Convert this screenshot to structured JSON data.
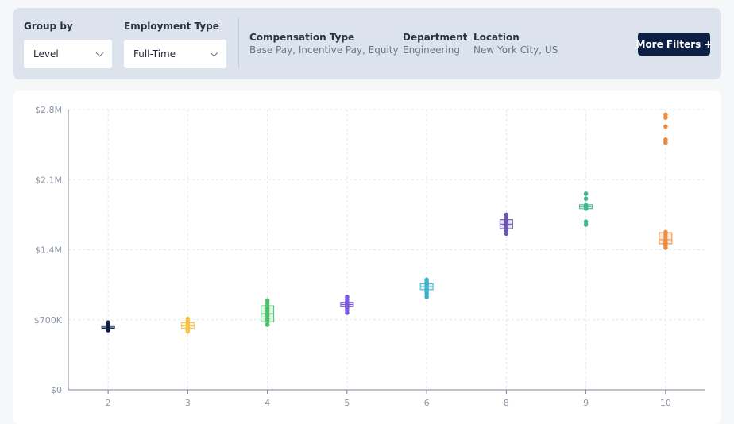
{
  "filters": {
    "group_by": {
      "label": "Group by",
      "value": "Level"
    },
    "employment_type": {
      "label": "Employment Type",
      "value": "Full-Time"
    },
    "compensation_type": {
      "label": "Compensation Type",
      "value": "Base Pay, Incentive Pay, Equity"
    },
    "department": {
      "label": "Department",
      "value": "Engineering"
    },
    "location": {
      "label": "Location",
      "value": "New York City, US"
    },
    "more_filters_label": "More Filters +"
  },
  "chart_data": {
    "type": "scatter",
    "title": "",
    "xlabel": "",
    "ylabel": "",
    "ylim": [
      0,
      2800000
    ],
    "y_ticks": [
      {
        "value": 0,
        "label": "$0"
      },
      {
        "value": 700000,
        "label": "$700K"
      },
      {
        "value": 1400000,
        "label": "$1.4M"
      },
      {
        "value": 2100000,
        "label": "$2.1M"
      },
      {
        "value": 2800000,
        "label": "$2.8M"
      }
    ],
    "categories": [
      "2",
      "3",
      "4",
      "5",
      "6",
      "8",
      "9",
      "10"
    ],
    "grid": true,
    "groups": [
      {
        "level": "2",
        "color": "#0d1f45",
        "box": [
          615000,
          640000
        ],
        "median": 628000,
        "points": [
          595000,
          605000,
          612000,
          620000,
          626000,
          632000,
          640000,
          648000,
          656000,
          665000,
          672000
        ]
      },
      {
        "level": "3",
        "color": "#f7c548",
        "box": [
          615000,
          670000
        ],
        "median": 645000,
        "points": [
          582000,
          595000,
          610000,
          625000,
          640000,
          652000,
          665000,
          680000,
          695000,
          710000
        ]
      },
      {
        "level": "4",
        "color": "#4cc06a",
        "box": [
          680000,
          840000
        ],
        "median": 760000,
        "points": [
          650000,
          680000,
          710000,
          740000,
          760000,
          790000,
          815000,
          840000,
          870000,
          895000
        ]
      },
      {
        "level": "5",
        "color": "#7a58e0",
        "box": [
          830000,
          875000
        ],
        "median": 853000,
        "points": [
          770000,
          795000,
          820000,
          845000,
          862000,
          880000,
          905000,
          930000
        ]
      },
      {
        "level": "6",
        "color": "#3cb2c9",
        "box": [
          1000000,
          1060000
        ],
        "median": 1030000,
        "points": [
          930000,
          960000,
          985000,
          1010000,
          1030000,
          1050000,
          1075000,
          1100000
        ]
      },
      {
        "level": "8",
        "color": "#6a56b0",
        "box": [
          1610000,
          1700000
        ],
        "median": 1655000,
        "points": [
          1560000,
          1590000,
          1615000,
          1640000,
          1665000,
          1690000,
          1720000,
          1750000
        ]
      },
      {
        "level": "9",
        "color": "#3fb792",
        "box": [
          1810000,
          1850000
        ],
        "median": 1830000,
        "points": [
          1650000,
          1680000,
          1810000,
          1825000,
          1845000,
          1910000,
          1960000
        ]
      },
      {
        "level": "10",
        "color": "#f08a3c",
        "box": [
          1460000,
          1570000
        ],
        "median": 1500000,
        "points": [
          1420000,
          1445000,
          1470000,
          1500000,
          1530000,
          1560000,
          1575000,
          2470000,
          2500000,
          2630000,
          2720000,
          2750000
        ]
      }
    ]
  }
}
